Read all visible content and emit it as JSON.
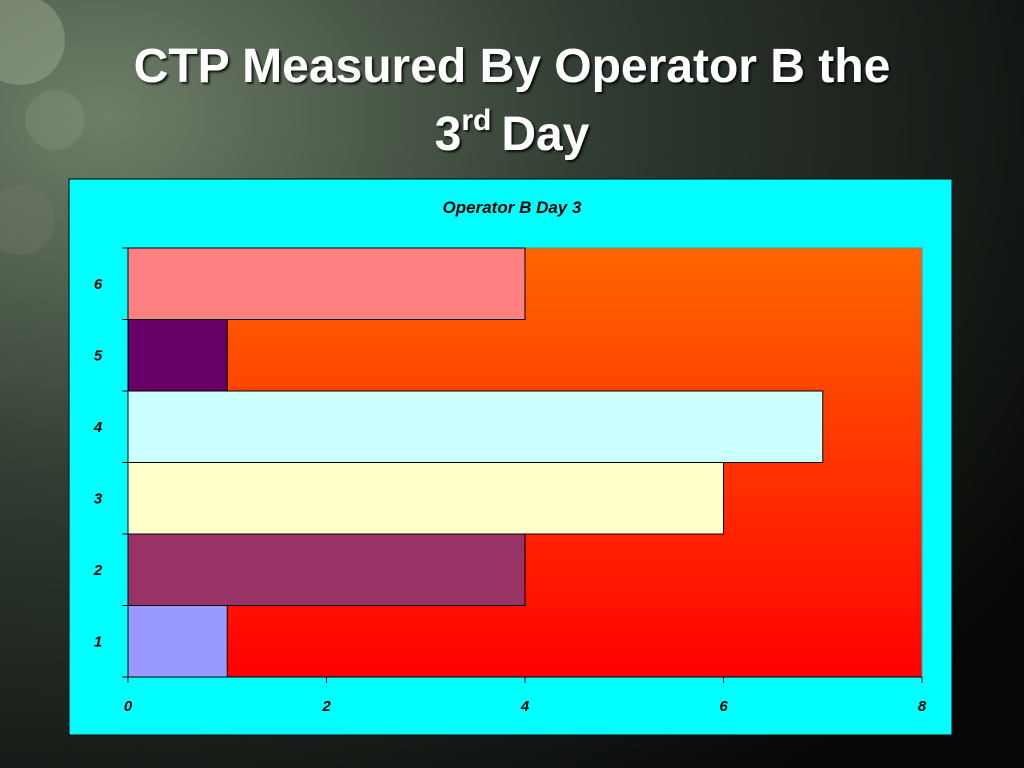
{
  "slide": {
    "title_line1": "CTP Measured By Operator B the",
    "title_number": "3",
    "title_superscript": "rd",
    "title_end": "Day"
  },
  "chart_data": {
    "type": "hbar",
    "title": "Operator B Day 3",
    "categories": [
      "1",
      "2",
      "3",
      "4",
      "5",
      "6"
    ],
    "values": [
      1,
      4,
      6,
      7,
      1,
      4
    ],
    "colors": [
      "#9999ff",
      "#993366",
      "#ffffcc",
      "#ccffff",
      "#660066",
      "#ff8080"
    ],
    "xlim": [
      0,
      8
    ],
    "xticks": [
      0,
      2,
      4,
      6,
      8
    ],
    "grid": false
  }
}
